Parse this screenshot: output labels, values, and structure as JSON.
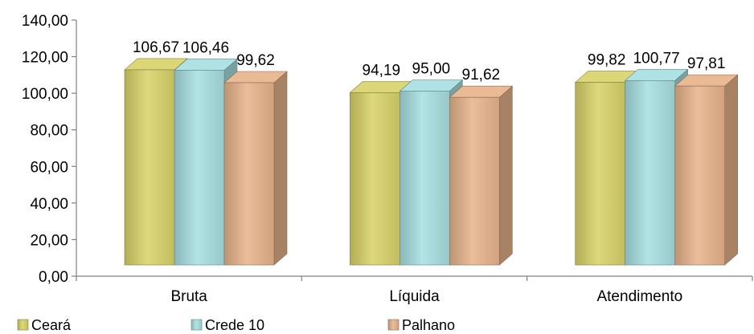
{
  "chart_data": {
    "type": "bar",
    "style": "3d-clustered-column",
    "categories": [
      "Bruta",
      "Líquida",
      "Atendimento"
    ],
    "series": [
      {
        "name": "Ceará",
        "values": [
          106.67,
          94.19,
          99.82
        ],
        "labels": [
          "106,67",
          "94,19",
          "99,82"
        ],
        "color": "#d9d36a"
      },
      {
        "name": "Crede 10",
        "values": [
          106.46,
          95.0,
          100.77
        ],
        "labels": [
          "106,46",
          "95,00",
          "100,77"
        ],
        "color": "#a8dfe2"
      },
      {
        "name": "Palhano",
        "values": [
          99.62,
          91.62,
          97.81
        ],
        "labels": [
          "99,62",
          "91,62",
          "97,81"
        ],
        "color": "#e8b48c"
      }
    ],
    "ylim": [
      0,
      140
    ],
    "yticks": [
      0,
      20,
      40,
      60,
      80,
      100,
      120,
      140
    ],
    "ytick_labels": [
      "0,00",
      "20,00",
      "40,00",
      "60,00",
      "80,00",
      "100,00",
      "120,00",
      "140,00"
    ],
    "title": "",
    "xlabel": "",
    "ylabel": "",
    "grid": false,
    "legend_position": "bottom"
  }
}
